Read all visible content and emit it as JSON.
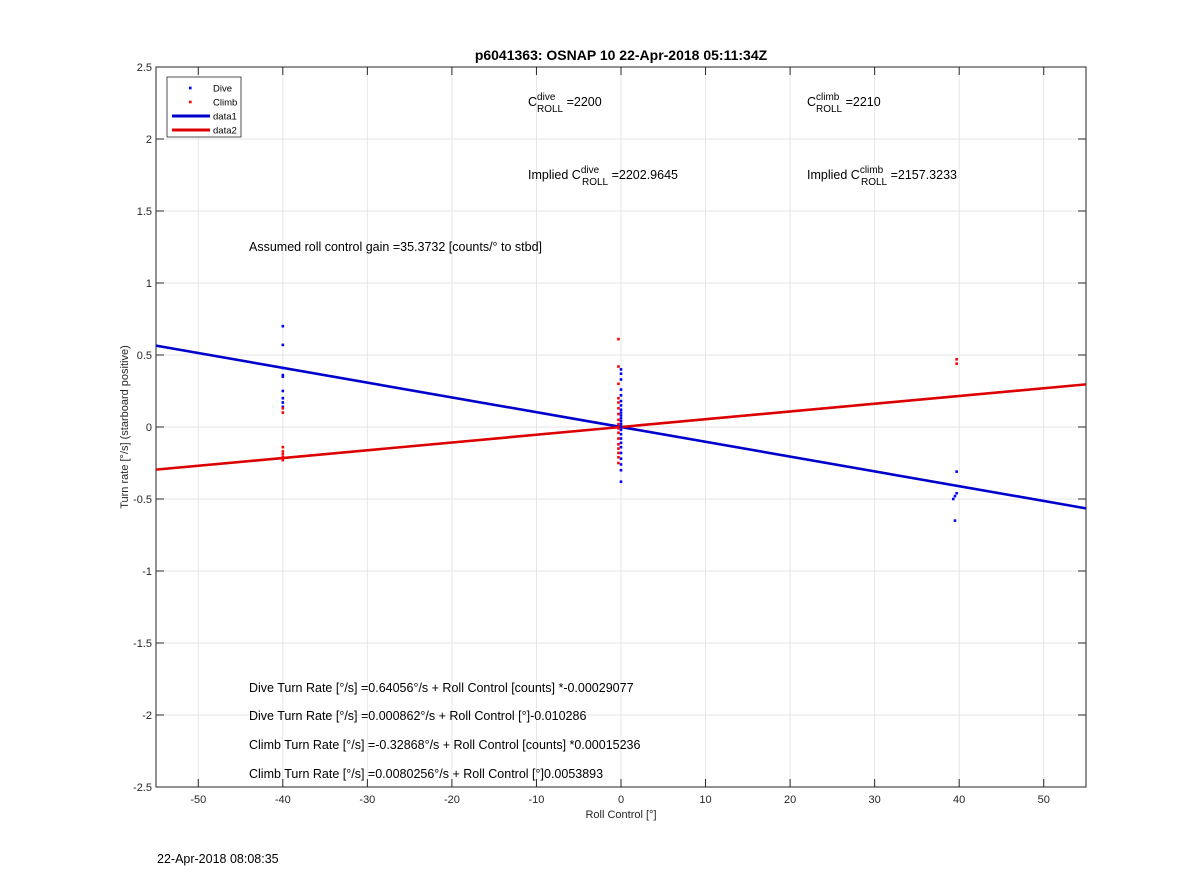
{
  "chart_data": {
    "type": "scatter",
    "title": "p6041363: OSNAP 10 22-Apr-2018 05:11:34Z",
    "xlabel": "Roll Control [°]",
    "ylabel": "Turn rate [°/s] (starboard positive)",
    "xlim": [
      -55,
      55
    ],
    "ylim": [
      -2.5,
      2.5
    ],
    "x_ticks": [
      -50,
      -40,
      -30,
      -20,
      -10,
      0,
      10,
      20,
      30,
      40,
      50
    ],
    "y_ticks": [
      -2.5,
      -2,
      -1.5,
      -1,
      -0.5,
      0,
      0.5,
      1,
      1.5,
      2,
      2.5
    ],
    "x_tick_labels": [
      "-50",
      "-40",
      "-30",
      "-20",
      "-10",
      "0",
      "10",
      "20",
      "30",
      "40",
      "50"
    ],
    "y_tick_labels": [
      "-2.5",
      "-2",
      "-1.5",
      "-1",
      "-0.5",
      "0",
      "0.5",
      "1",
      "1.5",
      "2",
      "2.5"
    ],
    "grid": true,
    "legend_position": "top-left",
    "series": [
      {
        "name": "Dive",
        "kind": "points",
        "color": "#0000ff",
        "points": [
          [
            -40,
            0.7
          ],
          [
            -40,
            0.57
          ],
          [
            -40,
            0.41
          ],
          [
            -40,
            0.36
          ],
          [
            -40,
            0.35
          ],
          [
            -40,
            0.25
          ],
          [
            -40,
            0.2
          ],
          [
            -40,
            0.17
          ],
          [
            -40,
            0.14
          ],
          [
            0,
            0.4
          ],
          [
            0,
            0.37
          ],
          [
            0,
            0.33
          ],
          [
            0,
            0.26
          ],
          [
            0,
            0.22
          ],
          [
            0,
            0.18
          ],
          [
            0,
            0.15
          ],
          [
            0,
            0.12
          ],
          [
            0,
            0.1
          ],
          [
            0,
            0.08
          ],
          [
            0,
            0.06
          ],
          [
            0,
            0.04
          ],
          [
            0,
            0.02
          ],
          [
            0,
            0.0
          ],
          [
            0,
            -0.02
          ],
          [
            0,
            -0.05
          ],
          [
            0,
            -0.08
          ],
          [
            0,
            -0.11
          ],
          [
            0,
            -0.14
          ],
          [
            0,
            -0.18
          ],
          [
            0,
            -0.22
          ],
          [
            0,
            -0.26
          ],
          [
            0,
            -0.3
          ],
          [
            0,
            -0.38
          ],
          [
            39.7,
            -0.31
          ],
          [
            39.7,
            -0.46
          ],
          [
            39.5,
            -0.48
          ],
          [
            39.3,
            -0.5
          ],
          [
            39.5,
            -0.65
          ]
        ]
      },
      {
        "name": "Climb",
        "kind": "points",
        "color": "#ff0000",
        "points": [
          [
            -40,
            0.13
          ],
          [
            -40,
            0.1
          ],
          [
            -40,
            -0.14
          ],
          [
            -40,
            -0.17
          ],
          [
            -40,
            -0.19
          ],
          [
            -40,
            -0.21
          ],
          [
            -40,
            -0.23
          ],
          [
            -0.3,
            0.61
          ],
          [
            -0.3,
            0.42
          ],
          [
            -0.3,
            0.3
          ],
          [
            -0.3,
            0.2
          ],
          [
            -0.3,
            0.17
          ],
          [
            -0.3,
            0.13
          ],
          [
            -0.3,
            0.09
          ],
          [
            -0.3,
            0.05
          ],
          [
            -0.3,
            0.02
          ],
          [
            -0.3,
            -0.01
          ],
          [
            -0.3,
            -0.04
          ],
          [
            -0.3,
            -0.08
          ],
          [
            -0.3,
            -0.12
          ],
          [
            -0.3,
            -0.15
          ],
          [
            -0.3,
            -0.18
          ],
          [
            -0.3,
            -0.21
          ],
          [
            -0.3,
            -0.25
          ],
          [
            39.7,
            0.47
          ],
          [
            39.7,
            0.44
          ]
        ]
      },
      {
        "name": "data1",
        "kind": "line",
        "color": "#0000cc",
        "x": [
          -55,
          55
        ],
        "y": [
          0.565,
          -0.565
        ]
      },
      {
        "name": "data2",
        "kind": "line",
        "color": "#dd0000",
        "x": [
          -55,
          55
        ],
        "y": [
          -0.296,
          0.296
        ]
      }
    ],
    "annotations": {
      "c_dive": {
        "base": "C",
        "sup": "dive",
        "sub": "ROLL",
        "value": " =2200"
      },
      "c_climb": {
        "base": "C",
        "sup": "climb",
        "sub": "ROLL",
        "value": " =2210"
      },
      "implied_dive": {
        "prefix": "Implied ",
        "base": "C",
        "sup": "dive",
        "sub": "ROLL",
        "value": " =2202.9645"
      },
      "implied_climb": {
        "prefix": "Implied ",
        "base": "C",
        "sup": "climb",
        "sub": "ROLL",
        "value": " =2157.3233"
      },
      "gain": "Assumed roll control gain =35.3732 [counts/° to stbd]",
      "eq1": "Dive Turn Rate [°/s] =0.64056°/s + Roll Control [counts] *-0.00029077",
      "eq2": "Dive Turn Rate [°/s] =0.000862°/s + Roll Control [°]-0.010286",
      "eq3": "Climb Turn Rate [°/s] =-0.32868°/s + Roll Control [counts] *0.00015236",
      "eq4": "Climb Turn Rate [°/s] =0.0080256°/s + Roll Control [°]0.0053893"
    }
  },
  "footer": {
    "timestamp": "22-Apr-2018 08:08:35"
  }
}
